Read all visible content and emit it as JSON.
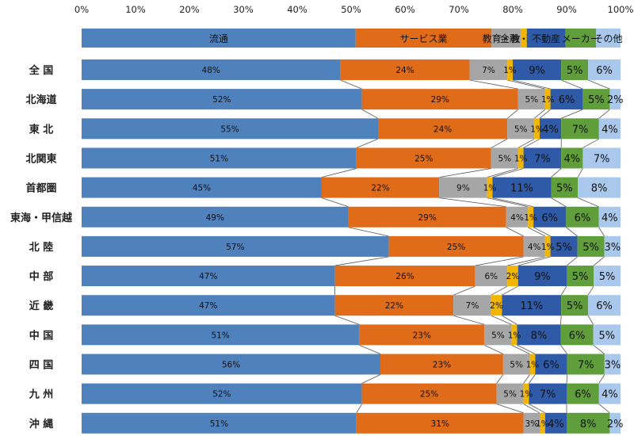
{
  "chart_data": {
    "type": "bar",
    "orientation": "horizontal",
    "stacked": true,
    "percent_stacked": true,
    "xlim": [
      0,
      100
    ],
    "x_ticks": [
      "0%",
      "10%",
      "20%",
      "30%",
      "40%",
      "50%",
      "60%",
      "70%",
      "80%",
      "90%",
      "100%"
    ],
    "legend_position": "top",
    "grid": false,
    "series_lines": true,
    "categories": [
      "全 国",
      "北海道",
      "東 北",
      "北関東",
      "首都圏",
      "東海・甲信越",
      "北 陸",
      "中 部",
      "近 畿",
      "中 国",
      "四 国",
      "九 州",
      "沖 縄"
    ],
    "series": [
      {
        "name": "流通",
        "color": "#4f81bd",
        "values": [
          48,
          52,
          55,
          51,
          45,
          49,
          57,
          47,
          47,
          51,
          56,
          52,
          51
        ]
      },
      {
        "name": "サービス業",
        "color": "#e06c1a",
        "values": [
          24,
          29,
          24,
          25,
          22,
          29,
          25,
          26,
          22,
          23,
          23,
          25,
          31
        ]
      },
      {
        "name": "教育・教養",
        "color": "#a6a6a6",
        "values": [
          7,
          5,
          5,
          5,
          9,
          4,
          4,
          6,
          7,
          5,
          5,
          5,
          3
        ]
      },
      {
        "name": "金融・保険",
        "color": "#f2b600",
        "values": [
          1,
          1,
          1,
          1,
          1,
          1,
          1,
          2,
          2,
          1,
          1,
          1,
          1
        ]
      },
      {
        "name": "不動産",
        "color": "#2e5aa8",
        "values": [
          9,
          6,
          4,
          7,
          11,
          6,
          5,
          9,
          11,
          8,
          6,
          7,
          4
        ]
      },
      {
        "name": "メーカー",
        "color": "#5f9e3a",
        "values": [
          5,
          5,
          7,
          4,
          5,
          6,
          5,
          5,
          5,
          6,
          7,
          6,
          8
        ]
      },
      {
        "name": "その他",
        "color": "#a9c8eb",
        "values": [
          6,
          2,
          4,
          7,
          8,
          4,
          3,
          5,
          6,
          5,
          3,
          4,
          2
        ]
      }
    ],
    "data_labels": {
      "全 国": [
        "48%",
        "24%",
        "7%",
        "1%",
        "9%",
        "5%",
        "6%"
      ],
      "北海道": [
        "52%",
        "29%",
        "5%",
        "1%",
        "6%",
        "5%",
        "2%"
      ],
      "東 北": [
        "55%",
        "24%",
        "5%",
        "1%",
        "4%",
        "7%",
        "4%"
      ],
      "北関東": [
        "51%",
        "25%",
        "5%",
        "1%",
        "7%",
        "4%",
        "7%"
      ],
      "首都圏": [
        "45%",
        "22%",
        "9%",
        "1%",
        "11%",
        "5%",
        "8%"
      ],
      "東海・甲信越": [
        "49%",
        "29%",
        "4%",
        "1%",
        "6%",
        "6%",
        "4%"
      ],
      "北 陸": [
        "57%",
        "25%",
        "4%",
        "1%",
        "5%",
        "5%",
        "3%"
      ],
      "中 部": [
        "47%",
        "26%",
        "6%",
        "2%",
        "9%",
        "5%",
        "5%"
      ],
      "近 畿": [
        "47%",
        "22%",
        "7%",
        "2%",
        "11%",
        "5%",
        "6%"
      ],
      "中 国": [
        "51%",
        "23%",
        "5%",
        "1%",
        "8%",
        "6%",
        "5%"
      ],
      "四 国": [
        "56%",
        "23%",
        "5%",
        "1%",
        "6%",
        "7%",
        "3%"
      ],
      "九 州": [
        "52%",
        "25%",
        "5%",
        "1%",
        "7%",
        "6%",
        "4%"
      ],
      "沖 縄": [
        "51%",
        "31%",
        "3%",
        "1%",
        "4%",
        "8%",
        "2%"
      ]
    }
  }
}
